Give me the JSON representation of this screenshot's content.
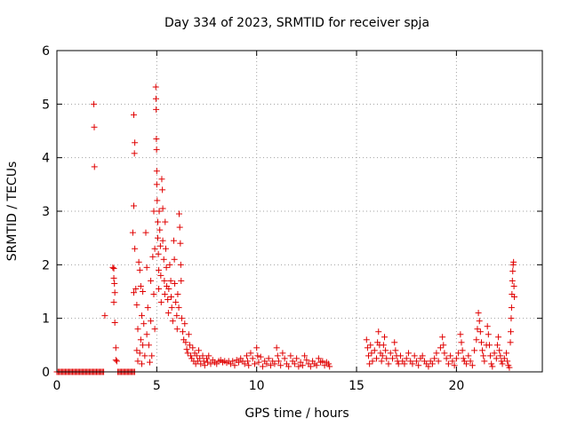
{
  "chart_data": {
    "type": "scatter",
    "title": "Day 334 of 2023, SRMTID for receiver spja",
    "xlabel": "GPS time / hours",
    "ylabel": "SRMTID / TECUs",
    "xlim": [
      0,
      24.3
    ],
    "ylim": [
      0,
      6
    ],
    "xticks": [
      0,
      5,
      10,
      15,
      20
    ],
    "yticks": [
      0,
      1,
      2,
      3,
      4,
      5,
      6
    ],
    "grid": true,
    "marker": "+",
    "color": "#e00000",
    "segments": [
      {
        "name": "baseline-early",
        "kind": "flat",
        "x_start": 0.0,
        "x_end": 2.35,
        "step": 0.06,
        "value": 0.0
      },
      {
        "name": "baseline-gap",
        "kind": "flat",
        "x_start": 3.05,
        "x_end": 3.9,
        "step": 0.06,
        "value": 0.0
      }
    ],
    "points": [
      [
        1.85,
        5.0
      ],
      [
        1.87,
        4.57
      ],
      [
        1.88,
        3.83
      ],
      [
        2.4,
        1.05
      ],
      [
        2.8,
        1.95
      ],
      [
        2.85,
        1.93
      ],
      [
        2.85,
        1.75
      ],
      [
        2.88,
        1.65
      ],
      [
        2.9,
        1.48
      ],
      [
        2.85,
        1.3
      ],
      [
        2.9,
        0.92
      ],
      [
        2.95,
        0.45
      ],
      [
        2.95,
        0.22
      ],
      [
        3.0,
        0.2
      ],
      [
        3.85,
        4.8
      ],
      [
        3.9,
        4.28
      ],
      [
        3.88,
        4.08
      ],
      [
        3.85,
        3.1
      ],
      [
        3.8,
        2.6
      ],
      [
        3.9,
        2.3
      ],
      [
        3.85,
        1.48
      ],
      [
        3.95,
        1.55
      ],
      [
        4.0,
        1.25
      ],
      [
        4.05,
        0.8
      ],
      [
        4.0,
        0.4
      ],
      [
        4.05,
        0.2
      ],
      [
        4.1,
        2.05
      ],
      [
        4.15,
        1.9
      ],
      [
        4.2,
        1.6
      ],
      [
        4.25,
        1.05
      ],
      [
        4.2,
        0.6
      ],
      [
        4.15,
        0.35
      ],
      [
        4.25,
        0.15
      ],
      [
        4.3,
        1.5
      ],
      [
        4.35,
        0.9
      ],
      [
        4.3,
        0.5
      ],
      [
        4.4,
        0.3
      ],
      [
        4.45,
        2.6
      ],
      [
        4.5,
        1.95
      ],
      [
        4.5,
        0.7
      ],
      [
        4.55,
        1.2
      ],
      [
        4.6,
        0.5
      ],
      [
        4.65,
        0.18
      ],
      [
        4.7,
        1.7
      ],
      [
        4.7,
        0.95
      ],
      [
        4.75,
        0.3
      ],
      [
        4.8,
        2.15
      ],
      [
        4.85,
        1.45
      ],
      [
        4.85,
        3.0
      ],
      [
        4.9,
        2.3
      ],
      [
        4.9,
        0.8
      ],
      [
        4.95,
        5.32
      ],
      [
        4.96,
        5.1
      ],
      [
        4.97,
        4.9
      ],
      [
        4.98,
        4.35
      ],
      [
        4.99,
        4.15
      ],
      [
        5.0,
        3.75
      ],
      [
        5.0,
        3.5
      ],
      [
        5.02,
        3.2
      ],
      [
        5.05,
        2.8
      ],
      [
        5.05,
        2.5
      ],
      [
        5.08,
        2.2
      ],
      [
        5.1,
        1.9
      ],
      [
        5.1,
        1.55
      ],
      [
        5.12,
        3.0
      ],
      [
        5.15,
        2.65
      ],
      [
        5.18,
        2.35
      ],
      [
        5.2,
        1.8
      ],
      [
        5.22,
        1.3
      ],
      [
        5.25,
        3.6
      ],
      [
        5.28,
        3.4
      ],
      [
        5.3,
        3.05
      ],
      [
        5.3,
        2.45
      ],
      [
        5.35,
        2.1
      ],
      [
        5.38,
        1.7
      ],
      [
        5.4,
        1.45
      ],
      [
        5.42,
        2.8
      ],
      [
        5.45,
        2.3
      ],
      [
        5.48,
        1.95
      ],
      [
        5.5,
        1.6
      ],
      [
        5.55,
        1.35
      ],
      [
        5.58,
        1.1
      ],
      [
        5.6,
        1.55
      ],
      [
        5.65,
        2.0
      ],
      [
        5.7,
        1.7
      ],
      [
        5.72,
        1.4
      ],
      [
        5.75,
        1.2
      ],
      [
        5.8,
        0.95
      ],
      [
        5.85,
        2.45
      ],
      [
        5.88,
        2.1
      ],
      [
        5.9,
        1.65
      ],
      [
        5.95,
        1.3
      ],
      [
        6.0,
        1.05
      ],
      [
        6.02,
        0.8
      ],
      [
        6.05,
        1.45
      ],
      [
        6.1,
        1.2
      ],
      [
        6.12,
        2.95
      ],
      [
        6.15,
        2.7
      ],
      [
        6.18,
        2.4
      ],
      [
        6.2,
        2.0
      ],
      [
        6.22,
        1.7
      ],
      [
        6.25,
        1.0
      ],
      [
        6.3,
        0.75
      ],
      [
        6.35,
        0.6
      ],
      [
        6.4,
        0.9
      ],
      [
        6.45,
        0.55
      ],
      [
        6.5,
        0.42
      ],
      [
        6.55,
        0.35
      ],
      [
        6.6,
        0.7
      ],
      [
        6.65,
        0.5
      ],
      [
        6.7,
        0.3
      ],
      [
        6.75,
        0.25
      ],
      [
        6.8,
        0.45
      ],
      [
        6.85,
        0.2
      ],
      [
        6.9,
        0.35
      ],
      [
        6.95,
        0.15
      ],
      [
        7.0,
        0.3
      ],
      [
        7.05,
        0.2
      ],
      [
        7.1,
        0.4
      ],
      [
        7.15,
        0.25
      ],
      [
        7.2,
        0.15
      ],
      [
        7.3,
        0.3
      ],
      [
        7.35,
        0.2
      ],
      [
        7.4,
        0.12
      ],
      [
        7.5,
        0.25
      ],
      [
        7.55,
        0.18
      ],
      [
        7.6,
        0.3
      ],
      [
        7.7,
        0.15
      ],
      [
        7.8,
        0.22
      ],
      [
        7.9,
        0.18
      ],
      [
        8.0,
        0.15
      ],
      [
        8.1,
        0.2
      ],
      [
        8.2,
        0.22
      ],
      [
        8.3,
        0.18
      ],
      [
        8.4,
        0.2
      ],
      [
        8.5,
        0.17
      ],
      [
        8.6,
        0.2
      ],
      [
        8.7,
        0.15
      ],
      [
        8.8,
        0.2
      ],
      [
        8.9,
        0.12
      ],
      [
        9.0,
        0.22
      ],
      [
        9.1,
        0.18
      ],
      [
        9.2,
        0.25
      ],
      [
        9.3,
        0.2
      ],
      [
        9.4,
        0.15
      ],
      [
        9.5,
        0.3
      ],
      [
        9.55,
        0.2
      ],
      [
        9.6,
        0.12
      ],
      [
        9.7,
        0.35
      ],
      [
        9.8,
        0.25
      ],
      [
        9.9,
        0.15
      ],
      [
        10.0,
        0.45
      ],
      [
        10.05,
        0.3
      ],
      [
        10.1,
        0.18
      ],
      [
        10.2,
        0.28
      ],
      [
        10.3,
        0.1
      ],
      [
        10.4,
        0.2
      ],
      [
        10.5,
        0.15
      ],
      [
        10.6,
        0.25
      ],
      [
        10.7,
        0.12
      ],
      [
        10.8,
        0.2
      ],
      [
        10.9,
        0.15
      ],
      [
        11.0,
        0.45
      ],
      [
        11.05,
        0.3
      ],
      [
        11.1,
        0.2
      ],
      [
        11.2,
        0.12
      ],
      [
        11.3,
        0.35
      ],
      [
        11.4,
        0.25
      ],
      [
        11.5,
        0.15
      ],
      [
        11.6,
        0.1
      ],
      [
        11.7,
        0.3
      ],
      [
        11.8,
        0.2
      ],
      [
        11.9,
        0.15
      ],
      [
        12.0,
        0.25
      ],
      [
        12.1,
        0.1
      ],
      [
        12.2,
        0.18
      ],
      [
        12.3,
        0.12
      ],
      [
        12.4,
        0.3
      ],
      [
        12.5,
        0.22
      ],
      [
        12.6,
        0.15
      ],
      [
        12.7,
        0.1
      ],
      [
        12.8,
        0.2
      ],
      [
        12.9,
        0.15
      ],
      [
        13.0,
        0.12
      ],
      [
        13.1,
        0.25
      ],
      [
        13.2,
        0.18
      ],
      [
        13.3,
        0.2
      ],
      [
        13.4,
        0.12
      ],
      [
        13.5,
        0.18
      ],
      [
        13.6,
        0.15
      ],
      [
        13.65,
        0.1
      ],
      [
        15.5,
        0.6
      ],
      [
        15.55,
        0.45
      ],
      [
        15.6,
        0.3
      ],
      [
        15.65,
        0.15
      ],
      [
        15.7,
        0.5
      ],
      [
        15.75,
        0.35
      ],
      [
        15.8,
        0.2
      ],
      [
        15.9,
        0.4
      ],
      [
        16.0,
        0.25
      ],
      [
        16.05,
        0.55
      ],
      [
        16.1,
        0.75
      ],
      [
        16.15,
        0.5
      ],
      [
        16.2,
        0.35
      ],
      [
        16.25,
        0.2
      ],
      [
        16.3,
        0.3
      ],
      [
        16.35,
        0.5
      ],
      [
        16.4,
        0.65
      ],
      [
        16.45,
        0.4
      ],
      [
        16.5,
        0.25
      ],
      [
        16.6,
        0.15
      ],
      [
        16.7,
        0.35
      ],
      [
        16.8,
        0.25
      ],
      [
        16.9,
        0.55
      ],
      [
        16.95,
        0.4
      ],
      [
        17.0,
        0.3
      ],
      [
        17.05,
        0.2
      ],
      [
        17.1,
        0.15
      ],
      [
        17.2,
        0.3
      ],
      [
        17.3,
        0.2
      ],
      [
        17.4,
        0.15
      ],
      [
        17.5,
        0.25
      ],
      [
        17.6,
        0.35
      ],
      [
        17.7,
        0.2
      ],
      [
        17.8,
        0.15
      ],
      [
        17.9,
        0.3
      ],
      [
        18.0,
        0.2
      ],
      [
        18.1,
        0.12
      ],
      [
        18.2,
        0.25
      ],
      [
        18.3,
        0.3
      ],
      [
        18.4,
        0.2
      ],
      [
        18.5,
        0.15
      ],
      [
        18.6,
        0.1
      ],
      [
        18.7,
        0.2
      ],
      [
        18.8,
        0.15
      ],
      [
        18.9,
        0.25
      ],
      [
        19.0,
        0.35
      ],
      [
        19.1,
        0.2
      ],
      [
        19.2,
        0.45
      ],
      [
        19.3,
        0.65
      ],
      [
        19.35,
        0.5
      ],
      [
        19.4,
        0.35
      ],
      [
        19.5,
        0.25
      ],
      [
        19.6,
        0.15
      ],
      [
        19.7,
        0.3
      ],
      [
        19.8,
        0.2
      ],
      [
        19.9,
        0.12
      ],
      [
        20.0,
        0.25
      ],
      [
        20.1,
        0.35
      ],
      [
        20.2,
        0.7
      ],
      [
        20.25,
        0.55
      ],
      [
        20.3,
        0.4
      ],
      [
        20.35,
        0.25
      ],
      [
        20.4,
        0.2
      ],
      [
        20.5,
        0.15
      ],
      [
        20.6,
        0.3
      ],
      [
        20.7,
        0.2
      ],
      [
        20.8,
        0.12
      ],
      [
        20.9,
        0.4
      ],
      [
        21.0,
        0.6
      ],
      [
        21.05,
        0.8
      ],
      [
        21.1,
        1.1
      ],
      [
        21.15,
        0.95
      ],
      [
        21.2,
        0.75
      ],
      [
        21.25,
        0.55
      ],
      [
        21.3,
        0.4
      ],
      [
        21.35,
        0.3
      ],
      [
        21.4,
        0.2
      ],
      [
        21.5,
        0.5
      ],
      [
        21.55,
        0.85
      ],
      [
        21.6,
        0.7
      ],
      [
        21.65,
        0.5
      ],
      [
        21.7,
        0.3
      ],
      [
        21.75,
        0.15
      ],
      [
        21.8,
        0.1
      ],
      [
        21.9,
        0.35
      ],
      [
        22.0,
        0.25
      ],
      [
        22.05,
        0.5
      ],
      [
        22.1,
        0.65
      ],
      [
        22.15,
        0.4
      ],
      [
        22.2,
        0.3
      ],
      [
        22.25,
        0.2
      ],
      [
        22.3,
        0.15
      ],
      [
        22.4,
        0.25
      ],
      [
        22.5,
        0.35
      ],
      [
        22.55,
        0.2
      ],
      [
        22.6,
        0.12
      ],
      [
        22.65,
        0.08
      ],
      [
        22.7,
        0.55
      ],
      [
        22.72,
        0.75
      ],
      [
        22.74,
        1.0
      ],
      [
        22.76,
        1.2
      ],
      [
        22.78,
        1.45
      ],
      [
        22.8,
        1.7
      ],
      [
        22.82,
        1.88
      ],
      [
        22.84,
        2.0
      ],
      [
        22.86,
        2.05
      ],
      [
        22.88,
        1.6
      ],
      [
        22.9,
        1.4
      ]
    ]
  }
}
